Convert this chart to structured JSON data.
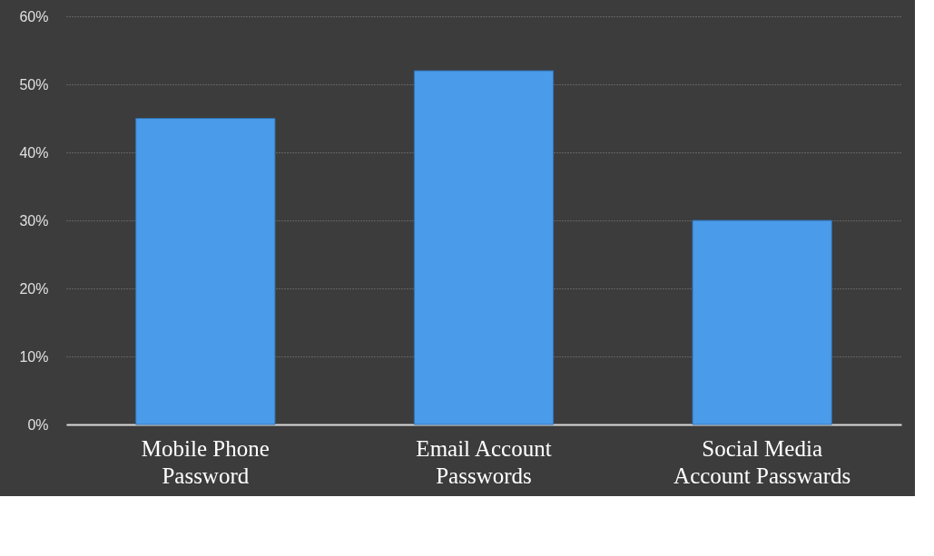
{
  "chart_data": {
    "type": "bar",
    "categories": [
      "Mobile Phone Password",
      "Email Account Passwords",
      "Social Media Account Passwards"
    ],
    "values": [
      45,
      52,
      30
    ],
    "color": "#4a9be9",
    "ylim": [
      0,
      60
    ],
    "yticks": [
      {
        "value": 0,
        "label": "0%"
      },
      {
        "value": 10,
        "label": "10%"
      },
      {
        "value": 20,
        "label": "20%"
      },
      {
        "value": 30,
        "label": "30%"
      },
      {
        "value": 40,
        "label": "40%"
      },
      {
        "value": 50,
        "label": "50%"
      },
      {
        "value": 60,
        "label": "60%"
      }
    ],
    "grid": "y"
  }
}
